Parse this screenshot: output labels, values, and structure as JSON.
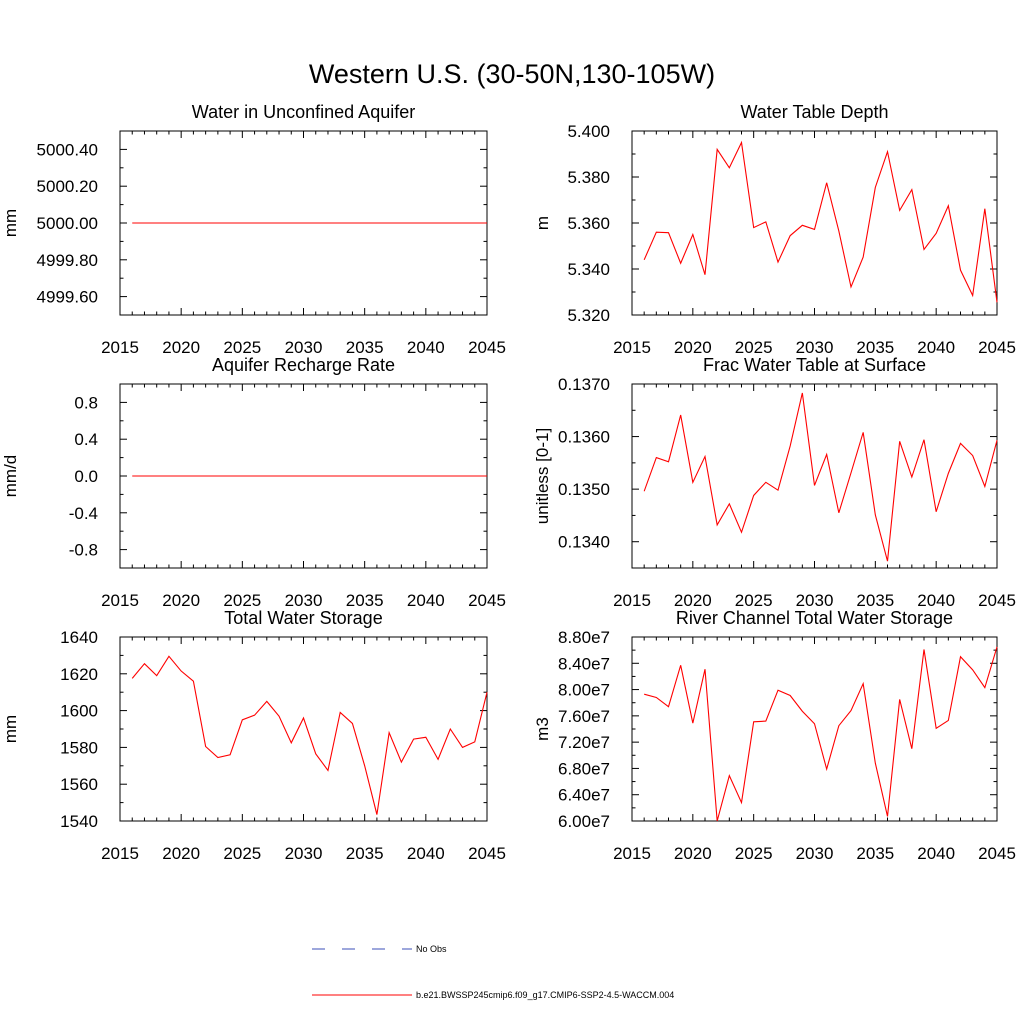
{
  "figure": {
    "title": "Western U.S. (30-50N,130-105W)",
    "legend": [
      {
        "label": "No Obs",
        "color": "#3b4fb8",
        "dash": true
      },
      {
        "label": "b.e21.BWSSP245cmip6.f09_g17.CMIP6-SSP2-4.5-WACCM.004",
        "color": "#ff0000",
        "dash": false
      }
    ]
  },
  "chart_data": [
    {
      "type": "line",
      "title": "Water in Unconfined Aquifer",
      "ylabel": "mm",
      "xlabel": "",
      "xlim": [
        2015,
        2045
      ],
      "ylim": [
        4999.5,
        5000.5
      ],
      "xticks": [
        2015,
        2020,
        2025,
        2030,
        2035,
        2040,
        2045
      ],
      "xtick_labels": [
        "2015",
        "2020",
        "2025",
        "2030",
        "2035",
        "2040",
        "2045"
      ],
      "yticks": [
        4999.6,
        4999.8,
        5000.0,
        5000.2,
        5000.4
      ],
      "ytick_labels": [
        "4999.60",
        "4999.80",
        "5000.00",
        "5000.20",
        "5000.40"
      ],
      "series": [
        {
          "color": "#ff0000",
          "x": [
            2016,
            2017,
            2018,
            2019,
            2020,
            2021,
            2022,
            2023,
            2024,
            2025,
            2026,
            2027,
            2028,
            2029,
            2030,
            2031,
            2032,
            2033,
            2034,
            2035,
            2036,
            2037,
            2038,
            2039,
            2040,
            2041,
            2042,
            2043,
            2044,
            2045
          ],
          "y": [
            5000,
            5000,
            5000,
            5000,
            5000,
            5000,
            5000,
            5000,
            5000,
            5000,
            5000,
            5000,
            5000,
            5000,
            5000,
            5000,
            5000,
            5000,
            5000,
            5000,
            5000,
            5000,
            5000,
            5000,
            5000,
            5000,
            5000,
            5000,
            5000,
            5000
          ]
        }
      ]
    },
    {
      "type": "line",
      "title": "Water Table Depth",
      "ylabel": "m",
      "xlabel": "",
      "xlim": [
        2015,
        2045
      ],
      "ylim": [
        5.32,
        5.4
      ],
      "xticks": [
        2015,
        2020,
        2025,
        2030,
        2035,
        2040,
        2045
      ],
      "xtick_labels": [
        "2015",
        "2020",
        "2025",
        "2030",
        "2035",
        "2040",
        "2045"
      ],
      "yticks": [
        5.32,
        5.34,
        5.36,
        5.38,
        5.4
      ],
      "ytick_labels": [
        "5.320",
        "5.340",
        "5.360",
        "5.380",
        "5.400"
      ],
      "series": [
        {
          "color": "#ff0000",
          "x": [
            2016,
            2017,
            2018,
            2019,
            2020,
            2021,
            2022,
            2023,
            2024,
            2025,
            2026,
            2027,
            2028,
            2029,
            2030,
            2031,
            2032,
            2033,
            2034,
            2035,
            2036,
            2037,
            2038,
            2039,
            2040,
            2041,
            2042,
            2043,
            2044,
            2045
          ],
          "y": [
            5.344,
            5.356,
            5.3558,
            5.3425,
            5.355,
            5.3375,
            5.392,
            5.384,
            5.395,
            5.358,
            5.3605,
            5.343,
            5.3545,
            5.359,
            5.3572,
            5.3775,
            5.3565,
            5.3322,
            5.3452,
            5.3755,
            5.391,
            5.3655,
            5.3745,
            5.3485,
            5.3555,
            5.3675,
            5.3395,
            5.3285,
            5.3662,
            5.3255
          ]
        }
      ]
    },
    {
      "type": "line",
      "title": "Aquifer Recharge Rate",
      "ylabel": "mm/d",
      "xlabel": "",
      "xlim": [
        2015,
        2045
      ],
      "ylim": [
        -1.0,
        1.0
      ],
      "xticks": [
        2015,
        2020,
        2025,
        2030,
        2035,
        2040,
        2045
      ],
      "xtick_labels": [
        "2015",
        "2020",
        "2025",
        "2030",
        "2035",
        "2040",
        "2045"
      ],
      "yticks": [
        -0.8,
        -0.4,
        0.0,
        0.4,
        0.8
      ],
      "ytick_labels": [
        "-0.8",
        "-0.4",
        "0.0",
        "0.4",
        "0.8"
      ],
      "series": [
        {
          "color": "#ff0000",
          "x": [
            2016,
            2017,
            2018,
            2019,
            2020,
            2021,
            2022,
            2023,
            2024,
            2025,
            2026,
            2027,
            2028,
            2029,
            2030,
            2031,
            2032,
            2033,
            2034,
            2035,
            2036,
            2037,
            2038,
            2039,
            2040,
            2041,
            2042,
            2043,
            2044,
            2045
          ],
          "y": [
            0,
            0,
            0,
            0,
            0,
            0,
            0,
            0,
            0,
            0,
            0,
            0,
            0,
            0,
            0,
            0,
            0,
            0,
            0,
            0,
            0,
            0,
            0,
            0,
            0,
            0,
            0,
            0,
            0,
            0
          ]
        }
      ]
    },
    {
      "type": "line",
      "title": "Frac Water Table at Surface",
      "ylabel": "unitless [0-1]",
      "xlabel": "",
      "xlim": [
        2015,
        2045
      ],
      "ylim": [
        0.1335,
        0.137
      ],
      "xticks": [
        2015,
        2020,
        2025,
        2030,
        2035,
        2040,
        2045
      ],
      "xtick_labels": [
        "2015",
        "2020",
        "2025",
        "2030",
        "2035",
        "2040",
        "2045"
      ],
      "yticks": [
        0.134,
        0.135,
        0.136,
        0.137
      ],
      "ytick_labels": [
        "0.1340",
        "0.1350",
        "0.1360",
        "0.1370"
      ],
      "series": [
        {
          "color": "#ff0000",
          "x": [
            2016,
            2017,
            2018,
            2019,
            2020,
            2021,
            2022,
            2023,
            2024,
            2025,
            2026,
            2027,
            2028,
            2029,
            2030,
            2031,
            2032,
            2033,
            2034,
            2035,
            2036,
            2037,
            2038,
            2039,
            2040,
            2041,
            2042,
            2043,
            2044,
            2045
          ],
          "y": [
            0.13496,
            0.1356,
            0.13552,
            0.13641,
            0.13513,
            0.13562,
            0.13432,
            0.13472,
            0.13418,
            0.13488,
            0.13513,
            0.13498,
            0.13582,
            0.13683,
            0.13507,
            0.13566,
            0.13455,
            0.13531,
            0.13608,
            0.13451,
            0.13363,
            0.13591,
            0.13523,
            0.13594,
            0.13457,
            0.1353,
            0.13587,
            0.13564,
            0.13505,
            0.13593
          ]
        }
      ]
    },
    {
      "type": "line",
      "title": "Total Water Storage",
      "ylabel": "mm",
      "xlabel": "",
      "xlim": [
        2015,
        2045
      ],
      "ylim": [
        1540,
        1640
      ],
      "xticks": [
        2015,
        2020,
        2025,
        2030,
        2035,
        2040,
        2045
      ],
      "xtick_labels": [
        "2015",
        "2020",
        "2025",
        "2030",
        "2035",
        "2040",
        "2045"
      ],
      "yticks": [
        1540,
        1560,
        1580,
        1600,
        1620,
        1640
      ],
      "ytick_labels": [
        "1540",
        "1560",
        "1580",
        "1600",
        "1620",
        "1640"
      ],
      "series": [
        {
          "color": "#ff0000",
          "x": [
            2016,
            2017,
            2018,
            2019,
            2020,
            2021,
            2022,
            2023,
            2024,
            2025,
            2026,
            2027,
            2028,
            2029,
            2030,
            2031,
            2032,
            2033,
            2034,
            2035,
            2036,
            2037,
            2038,
            2039,
            2040,
            2041,
            2042,
            2043,
            2044,
            2045
          ],
          "y": [
            1617.5,
            1625.5,
            1619,
            1629.5,
            1621.5,
            1616,
            1580.5,
            1574.5,
            1576,
            1595,
            1597.5,
            1605,
            1597,
            1582.5,
            1596,
            1576.5,
            1567.5,
            1599,
            1593,
            1570,
            1543.5,
            1588,
            1572,
            1584.5,
            1585.5,
            1573.5,
            1590,
            1580,
            1583,
            1610
          ]
        }
      ]
    },
    {
      "type": "line",
      "title": "River Channel Total Water Storage",
      "ylabel": "m3",
      "xlabel": "",
      "xlim": [
        2015,
        2045
      ],
      "ylim": [
        60000000,
        88000000
      ],
      "xticks": [
        2015,
        2020,
        2025,
        2030,
        2035,
        2040,
        2045
      ],
      "xtick_labels": [
        "2015",
        "2020",
        "2025",
        "2030",
        "2035",
        "2040",
        "2045"
      ],
      "yticks": [
        60000000,
        64000000,
        68000000,
        72000000,
        76000000,
        80000000,
        84000000,
        88000000
      ],
      "ytick_labels": [
        "6.00e7",
        "6.40e7",
        "6.80e7",
        "7.20e7",
        "7.60e7",
        "8.00e7",
        "8.40e7",
        "8.80e7"
      ],
      "series": [
        {
          "color": "#ff0000",
          "x": [
            2016,
            2017,
            2018,
            2019,
            2020,
            2021,
            2022,
            2023,
            2024,
            2025,
            2026,
            2027,
            2028,
            2029,
            2030,
            2031,
            2032,
            2033,
            2034,
            2035,
            2036,
            2037,
            2038,
            2039,
            2040,
            2041,
            2042,
            2043,
            2044,
            2045
          ],
          "y": [
            79300000,
            78800000,
            77400000,
            83700000,
            74900000,
            83100000,
            60000000,
            66900000,
            62800000,
            75100000,
            75200000,
            79900000,
            79100000,
            76700000,
            74800000,
            67900000,
            74500000,
            76800000,
            80900000,
            68800000,
            60700000,
            78500000,
            71000000,
            86100000,
            74100000,
            75300000,
            85000000,
            83000000,
            80300000,
            86500000
          ]
        }
      ]
    }
  ]
}
